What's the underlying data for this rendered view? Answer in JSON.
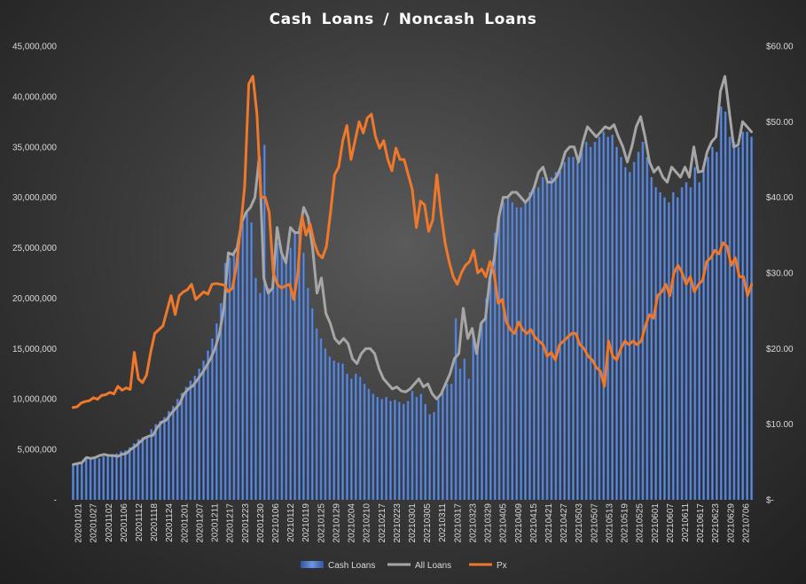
{
  "chart_data": {
    "type": "bar+line",
    "title": "Cash Loans / Noncash Loans",
    "left_axis": {
      "min": 0,
      "max": 45000000,
      "ticks": [
        "-",
        "5,000,000",
        "10,000,000",
        "15,000,000",
        "20,000,000",
        "25,000,000",
        "30,000,000",
        "35,000,000",
        "40,000,000",
        "45,000,000"
      ]
    },
    "right_axis": {
      "min": 0,
      "max": 60,
      "ticks": [
        "$-",
        "$10.00",
        "$20.00",
        "$30.00",
        "$40.00",
        "$50.00",
        "$60.00"
      ]
    },
    "x_tick_labels": [
      "20201021",
      "20201027",
      "20201102",
      "20201106",
      "20201112",
      "20201118",
      "20201124",
      "20201201",
      "20201207",
      "20201211",
      "20201217",
      "20201223",
      "20201230",
      "20210106",
      "20210112",
      "20210119",
      "20210125",
      "20210129",
      "20210204",
      "20210210",
      "20210217",
      "20210223",
      "20210301",
      "20210305",
      "20210311",
      "20210317",
      "20210323",
      "20210329",
      "20210405",
      "20210409",
      "20210415",
      "20210421",
      "20210427",
      "20210503",
      "20210507",
      "20210513",
      "20210519",
      "20210525",
      "20210601",
      "20210607",
      "20210611",
      "20210617",
      "20210623",
      "20210629",
      "20210706"
    ],
    "series": [
      {
        "name": "Cash Loans",
        "kind": "bar",
        "color": "#4472c4",
        "axis": "left",
        "values": [
          3400000,
          3500000,
          3700000,
          4000000,
          4100000,
          4200000,
          4100000,
          4300000,
          4500000,
          4400000,
          4600000,
          4800000,
          4900000,
          5200000,
          5600000,
          6000000,
          6200000,
          6300000,
          7000000,
          7500000,
          7800000,
          8200000,
          8800000,
          9300000,
          10000000,
          10600000,
          11200000,
          11800000,
          12300000,
          13000000,
          13800000,
          14800000,
          16000000,
          17500000,
          19500000,
          23500000,
          24000000,
          24500000,
          26000000,
          27500000,
          28500000,
          27500000,
          22000000,
          20500000,
          35200000,
          21000000,
          21500000,
          25500000,
          24500000,
          24000000,
          25000000,
          26500000,
          27000000,
          24500000,
          21000000,
          19000000,
          17000000,
          16000000,
          15000000,
          14200000,
          13800000,
          13600000,
          13500000,
          12500000,
          12000000,
          12500000,
          12200000,
          11500000,
          11000000,
          10500000,
          10200000,
          10000000,
          10200000,
          9800000,
          9900000,
          9700000,
          9500000,
          9800000,
          10800000,
          10200000,
          10500000,
          9500000,
          8500000,
          8700000,
          10000000,
          10700000,
          11500000,
          11500000,
          18000000,
          13000000,
          14000000,
          12000000,
          16500000,
          15500000,
          17500000,
          20000000,
          23000000,
          26500000,
          28500000,
          29500000,
          30000000,
          29500000,
          29000000,
          29000000,
          29500000,
          30500000,
          31000000,
          31000000,
          32000000,
          31500000,
          32000000,
          32500000,
          33000000,
          33500000,
          34000000,
          34000000,
          33500000,
          35000000,
          35500000,
          35000000,
          35500000,
          36000000,
          36500000,
          36000000,
          36200000,
          35000000,
          34000000,
          33000000,
          32500000,
          33500000,
          34500000,
          35500000,
          34000000,
          32000000,
          31000000,
          30500000,
          30000000,
          29500000,
          30500000,
          30000000,
          31000000,
          31500000,
          31000000,
          33000000,
          31500000,
          33000000,
          34000000,
          35000000,
          34500000,
          39000000,
          38500000,
          36000000,
          35500000,
          35000000,
          36500000,
          36500000,
          36000000
        ]
      },
      {
        "name": "All Loans",
        "kind": "line",
        "color": "#a6a6a6",
        "axis": "left",
        "values": [
          3500000,
          3600000,
          3700000,
          4200000,
          4100000,
          4200000,
          4400000,
          4500000,
          4400000,
          4400000,
          4300000,
          4500000,
          4600000,
          5000000,
          5300000,
          5700000,
          6100000,
          6300000,
          6400000,
          7200000,
          7700000,
          7900000,
          8500000,
          9000000,
          9500000,
          10500000,
          11000000,
          11300000,
          11900000,
          12500000,
          13200000,
          14000000,
          15000000,
          16500000,
          19000000,
          24500000,
          24300000,
          25000000,
          27500000,
          28500000,
          29000000,
          30000000,
          34000000,
          22000000,
          20500000,
          21000000,
          27000000,
          24500000,
          23500000,
          27000000,
          26500000,
          26500000,
          29000000,
          28000000,
          25000000,
          20500000,
          22000000,
          18500000,
          17500000,
          16000000,
          15500000,
          16000000,
          15500000,
          14000000,
          13500000,
          14500000,
          15000000,
          15000000,
          14500000,
          13000000,
          12000000,
          11500000,
          11000000,
          11200000,
          10800000,
          10700000,
          11000000,
          11500000,
          12000000,
          11200000,
          11500000,
          10500000,
          10000000,
          10500000,
          11500000,
          12500000,
          14000000,
          14500000,
          19000000,
          16000000,
          17000000,
          14500000,
          17500000,
          18000000,
          22000000,
          24000000,
          28000000,
          30000000,
          30000000,
          30500000,
          30500000,
          30000000,
          29500000,
          30000000,
          31000000,
          32500000,
          33000000,
          31500000,
          31500000,
          32000000,
          33000000,
          34500000,
          35000000,
          35000000,
          33500000,
          35500000,
          37000000,
          36500000,
          36000000,
          36500000,
          37000000,
          36800000,
          37200000,
          36000000,
          35000000,
          33500000,
          35000000,
          37000000,
          38000000,
          36000000,
          33500000,
          32500000,
          33000000,
          32000000,
          31500000,
          33000000,
          32500000,
          32000000,
          33000000,
          32000000,
          35000000,
          32500000,
          32600000,
          34500000,
          35500000,
          36000000,
          40500000,
          42000000,
          38500000,
          35000000,
          35200000,
          37500000,
          37000000,
          36500000
        ]
      },
      {
        "name": "Px",
        "kind": "line",
        "color": "#f0782a",
        "axis": "right",
        "values": [
          12.2,
          12.3,
          12.8,
          13.0,
          13.1,
          13.5,
          13.3,
          13.8,
          13.9,
          14.2,
          14.0,
          15.0,
          14.5,
          14.8,
          14.6,
          19.5,
          16.0,
          15.5,
          16.5,
          19.5,
          22.0,
          22.5,
          23.0,
          25.0,
          27.0,
          24.5,
          27.0,
          27.5,
          27.8,
          28.5,
          26.5,
          27.0,
          27.5,
          27.2,
          28.5,
          28.6,
          28.5,
          28.4,
          27.5,
          28.0,
          31.0,
          36.0,
          41.5,
          55.0,
          56.0,
          51.0,
          40.0,
          40.0,
          38.0,
          30.0,
          28.5,
          28.0,
          28.3,
          28.5,
          26.5,
          30.0,
          37.5,
          35.0,
          36.5,
          34.0,
          32.5,
          32.0,
          33.5,
          38.0,
          43.0,
          44.0,
          47.5,
          49.5,
          45.0,
          47.5,
          50.0,
          48.5,
          50.5,
          51.0,
          48.0,
          46.5,
          47.5,
          45.0,
          43.5,
          46.5,
          45.0,
          45.0,
          43.0,
          41.0,
          36.0,
          39.5,
          39.0,
          35.5,
          37.0,
          43.0,
          38.0,
          34.0,
          31.5,
          29.5,
          28.5,
          30.0,
          31.0,
          31.5,
          33.0,
          30.0,
          30.5,
          29.5,
          31.5,
          30.0,
          26.0,
          26.5,
          23.5,
          22.5,
          22.0,
          23.5,
          22.5,
          22.0,
          22.5,
          21.5,
          21.0,
          20.5,
          19.0,
          19.5,
          18.5,
          20.5,
          21.0,
          21.5,
          22.0,
          22.0,
          20.5,
          20.0,
          19.0,
          18.5,
          17.5,
          17.0,
          15.0,
          21.0,
          19.0,
          18.5,
          20.0,
          21.0,
          20.5,
          21.0,
          20.5,
          21.0,
          23.0,
          24.5,
          24.0,
          27.0,
          27.5,
          28.5,
          27.0,
          30.0,
          31.0,
          30.0,
          28.5,
          29.5,
          27.5,
          28.5,
          29.0,
          31.5,
          32.0,
          33.0,
          32.5,
          34.0,
          33.5,
          31.0,
          32.0,
          29.5,
          29.5,
          27.0,
          28.5
        ]
      }
    ],
    "legend": {
      "position": "bottom",
      "items": [
        "Cash Loans",
        "All Loans",
        "Px"
      ]
    },
    "grid": false
  }
}
